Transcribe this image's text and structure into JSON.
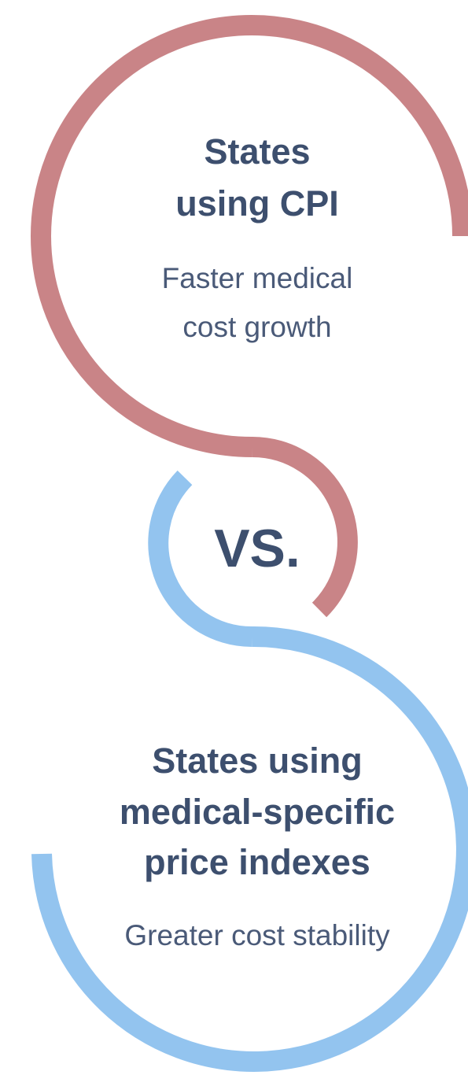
{
  "top": {
    "title_lines": [
      "States",
      "using CPI"
    ],
    "subtitle_lines": [
      "Faster medical",
      "cost growth"
    ]
  },
  "middle": {
    "label": "VS."
  },
  "bottom": {
    "title_lines": [
      "States using",
      "medical-specific",
      "price indexes"
    ],
    "subtitle_lines": [
      "Greater cost stability"
    ]
  }
}
